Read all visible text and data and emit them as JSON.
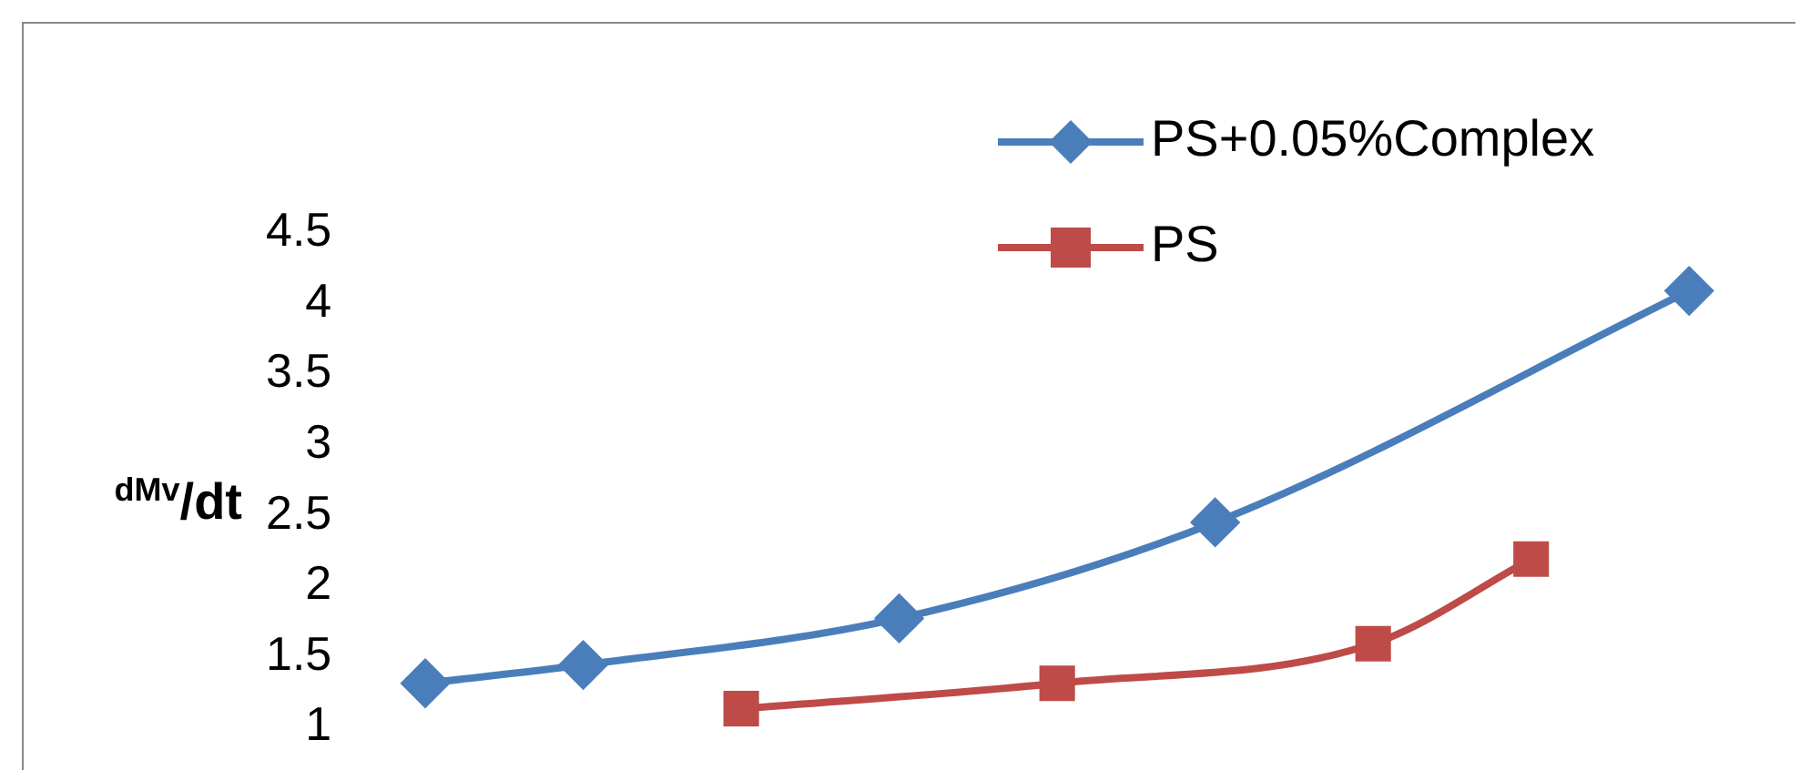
{
  "chart_data": {
    "type": "line",
    "ylabel": "$^{dMv}$/dt",
    "categories": [
      null,
      null,
      null,
      null,
      null,
      null,
      null,
      null,
      null
    ],
    "series": [
      {
        "name": "PS+0.05%Complex",
        "color": "#4a7ebb",
        "values": [
          1.31,
          1.44,
          null,
          1.77,
          null,
          2.45,
          null,
          null,
          4.09
        ]
      },
      {
        "name": "PS",
        "color": "#be4b48",
        "marker": "square",
        "values": [
          null,
          null,
          1.13,
          null,
          1.31,
          null,
          1.59,
          2.19,
          null
        ]
      }
    ],
    "ylim": [
      1,
      4.5
    ],
    "yticks": [
      1,
      1.5,
      2,
      2.5,
      3,
      3.5,
      4,
      4.5
    ],
    "tick_labels": "y",
    "grid": false,
    "legend": "top right",
    "marker": "diamond",
    "line_style": "solid"
  }
}
